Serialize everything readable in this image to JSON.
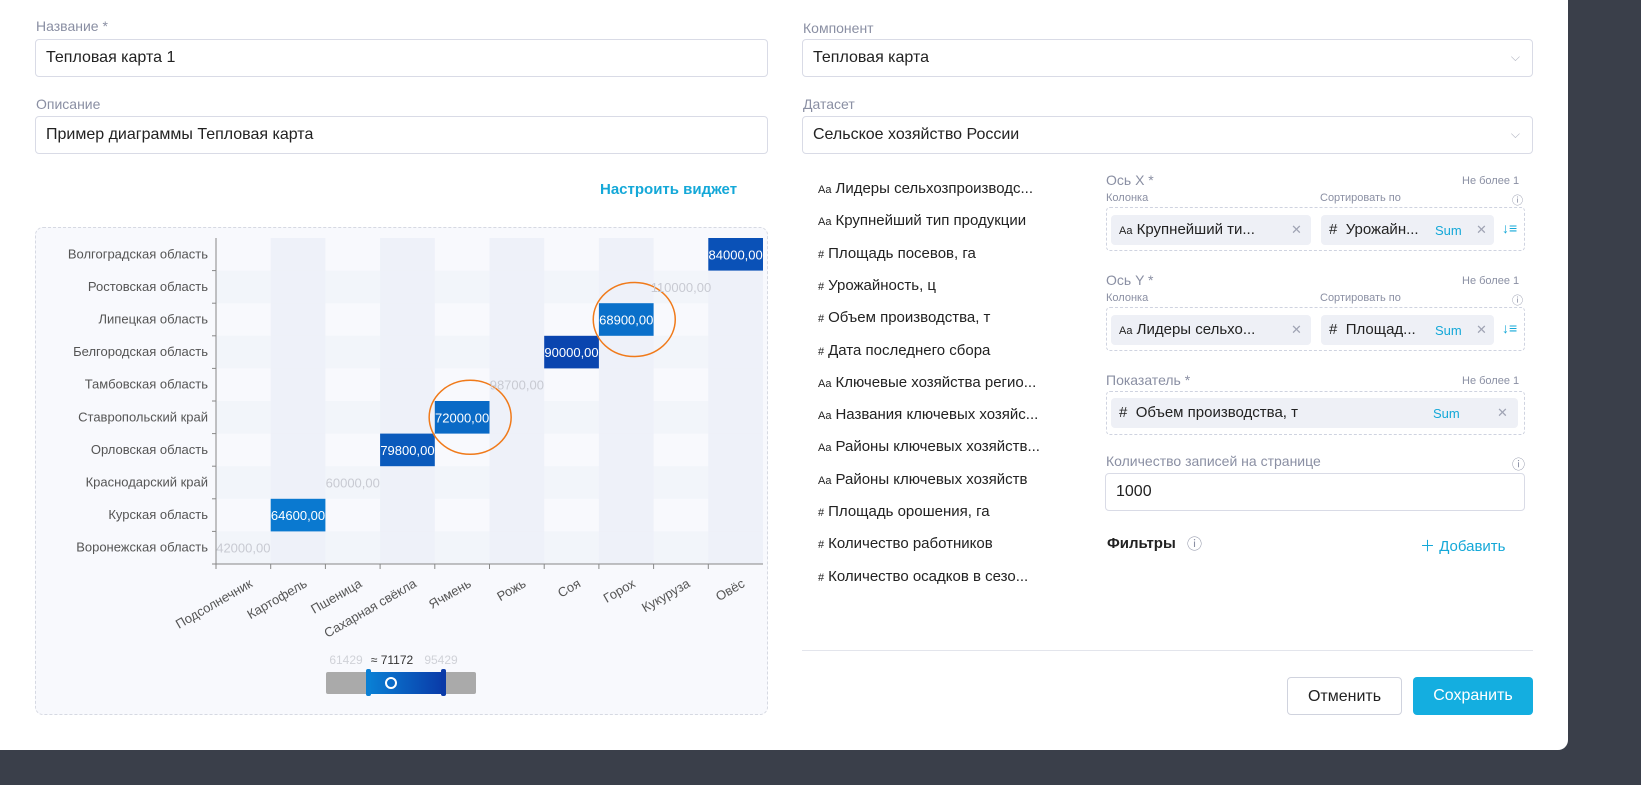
{
  "form": {
    "name_label": "Название *",
    "name_value": "Тепловая карта 1",
    "desc_label": "Описание",
    "desc_value": "Пример диаграммы Тепловая карта",
    "component_label": "Компонент",
    "component_value": "Тепловая карта",
    "dataset_label": "Датасет",
    "dataset_value": "Сельское хозяйство России",
    "configure_link": "Настроить виджет"
  },
  "fields": [
    {
      "type": "Aa",
      "name": "Лидеры сельхозпроизводс..."
    },
    {
      "type": "Aa",
      "name": "Крупнейший тип продукции"
    },
    {
      "type": "#",
      "name": "Площадь посевов, га"
    },
    {
      "type": "#",
      "name": "Урожайность, ц"
    },
    {
      "type": "#",
      "name": "Объем производства, т"
    },
    {
      "type": "#",
      "name": "Дата последнего сбора"
    },
    {
      "type": "Aa",
      "name": "Ключевые хозяйства регио..."
    },
    {
      "type": "Aa",
      "name": "Названия ключевых хозяйс..."
    },
    {
      "type": "Aa",
      "name": "Районы ключевых хозяйств..."
    },
    {
      "type": "Aa",
      "name": "Районы ключевых хозяйств"
    },
    {
      "type": "#",
      "name": "Площадь орошения, га"
    },
    {
      "type": "#",
      "name": "Количество работников"
    },
    {
      "type": "#",
      "name": "Количество осадков в сезо..."
    }
  ],
  "config": {
    "x_axis": {
      "label": "Ось X *",
      "limit": "Не более 1",
      "column_label": "Колонка",
      "sort_label": "Сортировать по",
      "column_type": "Aa",
      "column": "Крупнейший ти...",
      "sort_type": "#",
      "sort": "Урожайн...",
      "agg": "Sum"
    },
    "y_axis": {
      "label": "Ось Y *",
      "limit": "Не более 1",
      "column_label": "Колонка",
      "sort_label": "Сортировать по",
      "column_type": "Aa",
      "column": "Лидеры сельхо...",
      "sort_type": "#",
      "sort": "Площад...",
      "agg": "Sum"
    },
    "measure": {
      "label": "Показатель *",
      "limit": "Не более 1",
      "type": "#",
      "value": "Объем производства, т",
      "agg": "Sum"
    },
    "records_label": "Количество записей на странице",
    "records_value": "1000",
    "filters_label": "Фильтры",
    "add_label": "Добавить"
  },
  "buttons": {
    "cancel": "Отменить",
    "save": "Сохранить"
  },
  "colors": {
    "accent": "#14a8d8",
    "low": "#0a7fd4",
    "high": "#0a3aa8",
    "highlight": "#f07a1a"
  },
  "chart_data": {
    "type": "heatmap",
    "x_categories": [
      "Подсолнечник",
      "Картофель",
      "Пшеница",
      "Сахарная свёкла",
      "Ячмень",
      "Рожь",
      "Соя",
      "Горох",
      "Кукуруза",
      "Овёс"
    ],
    "y_categories": [
      "Воронежская область",
      "Курская область",
      "Краснодарский край",
      "Орловская область",
      "Ставропольский край",
      "Тамбовская область",
      "Белгородская область",
      "Липецкая область",
      "Ростовская область",
      "Волгоградская область"
    ],
    "cells": [
      {
        "x": "Подсолнечник",
        "y": "Воронежская область",
        "value": 42000,
        "label": "42000,00"
      },
      {
        "x": "Картофель",
        "y": "Курская область",
        "value": 64600,
        "label": "64600,00"
      },
      {
        "x": "Пшеница",
        "y": "Краснодарский край",
        "value": 60000,
        "label": "60000,00"
      },
      {
        "x": "Сахарная свёкла",
        "y": "Орловская область",
        "value": 79800,
        "label": "79800,00"
      },
      {
        "x": "Ячмень",
        "y": "Ставропольский край",
        "value": 72000,
        "label": "72000,00",
        "highlighted": true
      },
      {
        "x": "Рожь",
        "y": "Тамбовская область",
        "value": 98700,
        "label": "98700,00"
      },
      {
        "x": "Соя",
        "y": "Белгородская область",
        "value": 90000,
        "label": "90000,00"
      },
      {
        "x": "Горох",
        "y": "Липецкая область",
        "value": 68900,
        "label": "68900,00",
        "highlighted": true
      },
      {
        "x": "Кукуруза",
        "y": "Ростовская область",
        "value": 110000,
        "label": "110000,00"
      },
      {
        "x": "Овёс",
        "y": "Волгоградская область",
        "value": 84000,
        "label": "84000,00"
      }
    ],
    "visual_map": {
      "min_label": "61429",
      "max_label": "95429",
      "pointer_label": "≈ 71172",
      "range": [
        61429,
        95429
      ]
    }
  }
}
